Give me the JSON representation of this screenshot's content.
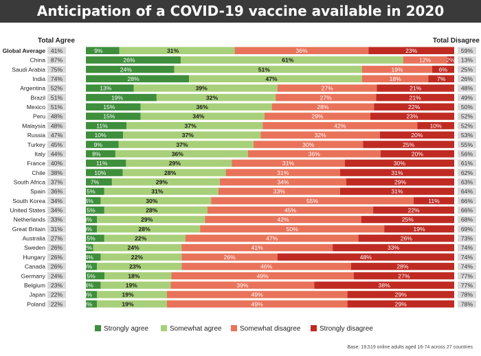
{
  "title": "Anticipation of a COVID-19 vaccine available in 2020",
  "headers": {
    "total_agree": "Total Agree",
    "total_disagree": "Total Disagree"
  },
  "footnote": "Base: 19,519 online adults aged 16-74 across 27 countries",
  "colors": {
    "strongly_agree": "#3e8e3c",
    "somewhat_agree": "#a8d07a",
    "somewhat_disagree": "#e8735a",
    "strongly_disagree": "#bf2b23",
    "title_bg": "#3a3a3a",
    "total_cell": "#d9d9d9"
  },
  "legend": [
    {
      "key": "strongly_agree",
      "label": "Strongly agree"
    },
    {
      "key": "somewhat_agree",
      "label": "Somewhat agree"
    },
    {
      "key": "somewhat_disagree",
      "label": "Somewhat disagree"
    },
    {
      "key": "strongly_disagree",
      "label": "Strongly disagree"
    }
  ],
  "chart_data": {
    "type": "bar",
    "stacked": true,
    "orientation": "horizontal",
    "value_suffix": "%",
    "categories": [
      "Global Average",
      "China",
      "Saudi Arabia",
      "India",
      "Argentina",
      "Brazil",
      "Mexico",
      "Peru",
      "Malaysia",
      "Russia",
      "Turkey",
      "Italy",
      "France",
      "Chile",
      "South Africa",
      "Spain",
      "South Korea",
      "United States",
      "Netherlands",
      "Great Britain",
      "Australia",
      "Sweden",
      "Hungary",
      "Canada",
      "Germany",
      "Belgium",
      "Japan",
      "Poland"
    ],
    "total_agree": [
      41,
      87,
      75,
      74,
      52,
      51,
      51,
      48,
      48,
      47,
      45,
      44,
      40,
      38,
      37,
      36,
      34,
      34,
      33,
      31,
      27,
      26,
      26,
      26,
      24,
      23,
      22,
      22
    ],
    "total_disagree": [
      59,
      13,
      25,
      26,
      48,
      49,
      50,
      52,
      52,
      53,
      55,
      56,
      61,
      62,
      63,
      64,
      66,
      66,
      68,
      69,
      73,
      74,
      74,
      74,
      77,
      77,
      78,
      78
    ],
    "series": [
      {
        "name": "Strongly agree",
        "values": [
          9,
          26,
          24,
          28,
          13,
          19,
          15,
          15,
          11,
          10,
          9,
          8,
          11,
          10,
          7,
          5,
          4,
          5,
          3,
          3,
          5,
          2,
          4,
          3,
          5,
          4,
          3,
          3
        ]
      },
      {
        "name": "Somewhat agree",
        "values": [
          31,
          61,
          51,
          47,
          39,
          32,
          36,
          34,
          37,
          37,
          37,
          36,
          29,
          28,
          29,
          31,
          30,
          28,
          29,
          28,
          22,
          24,
          22,
          23,
          18,
          19,
          19,
          19
        ]
      },
      {
        "name": "Somewhat disagree",
        "values": [
          36,
          12,
          19,
          18,
          27,
          27,
          28,
          29,
          42,
          32,
          30,
          36,
          31,
          31,
          34,
          33,
          55,
          45,
          42,
          50,
          47,
          41,
          26,
          46,
          49,
          39,
          49,
          49
        ]
      },
      {
        "name": "Strongly disagree",
        "values": [
          23,
          2,
          6,
          7,
          21,
          21,
          22,
          23,
          10,
          20,
          25,
          20,
          30,
          31,
          29,
          31,
          11,
          22,
          25,
          19,
          26,
          33,
          48,
          28,
          27,
          38,
          29,
          29
        ]
      }
    ]
  }
}
